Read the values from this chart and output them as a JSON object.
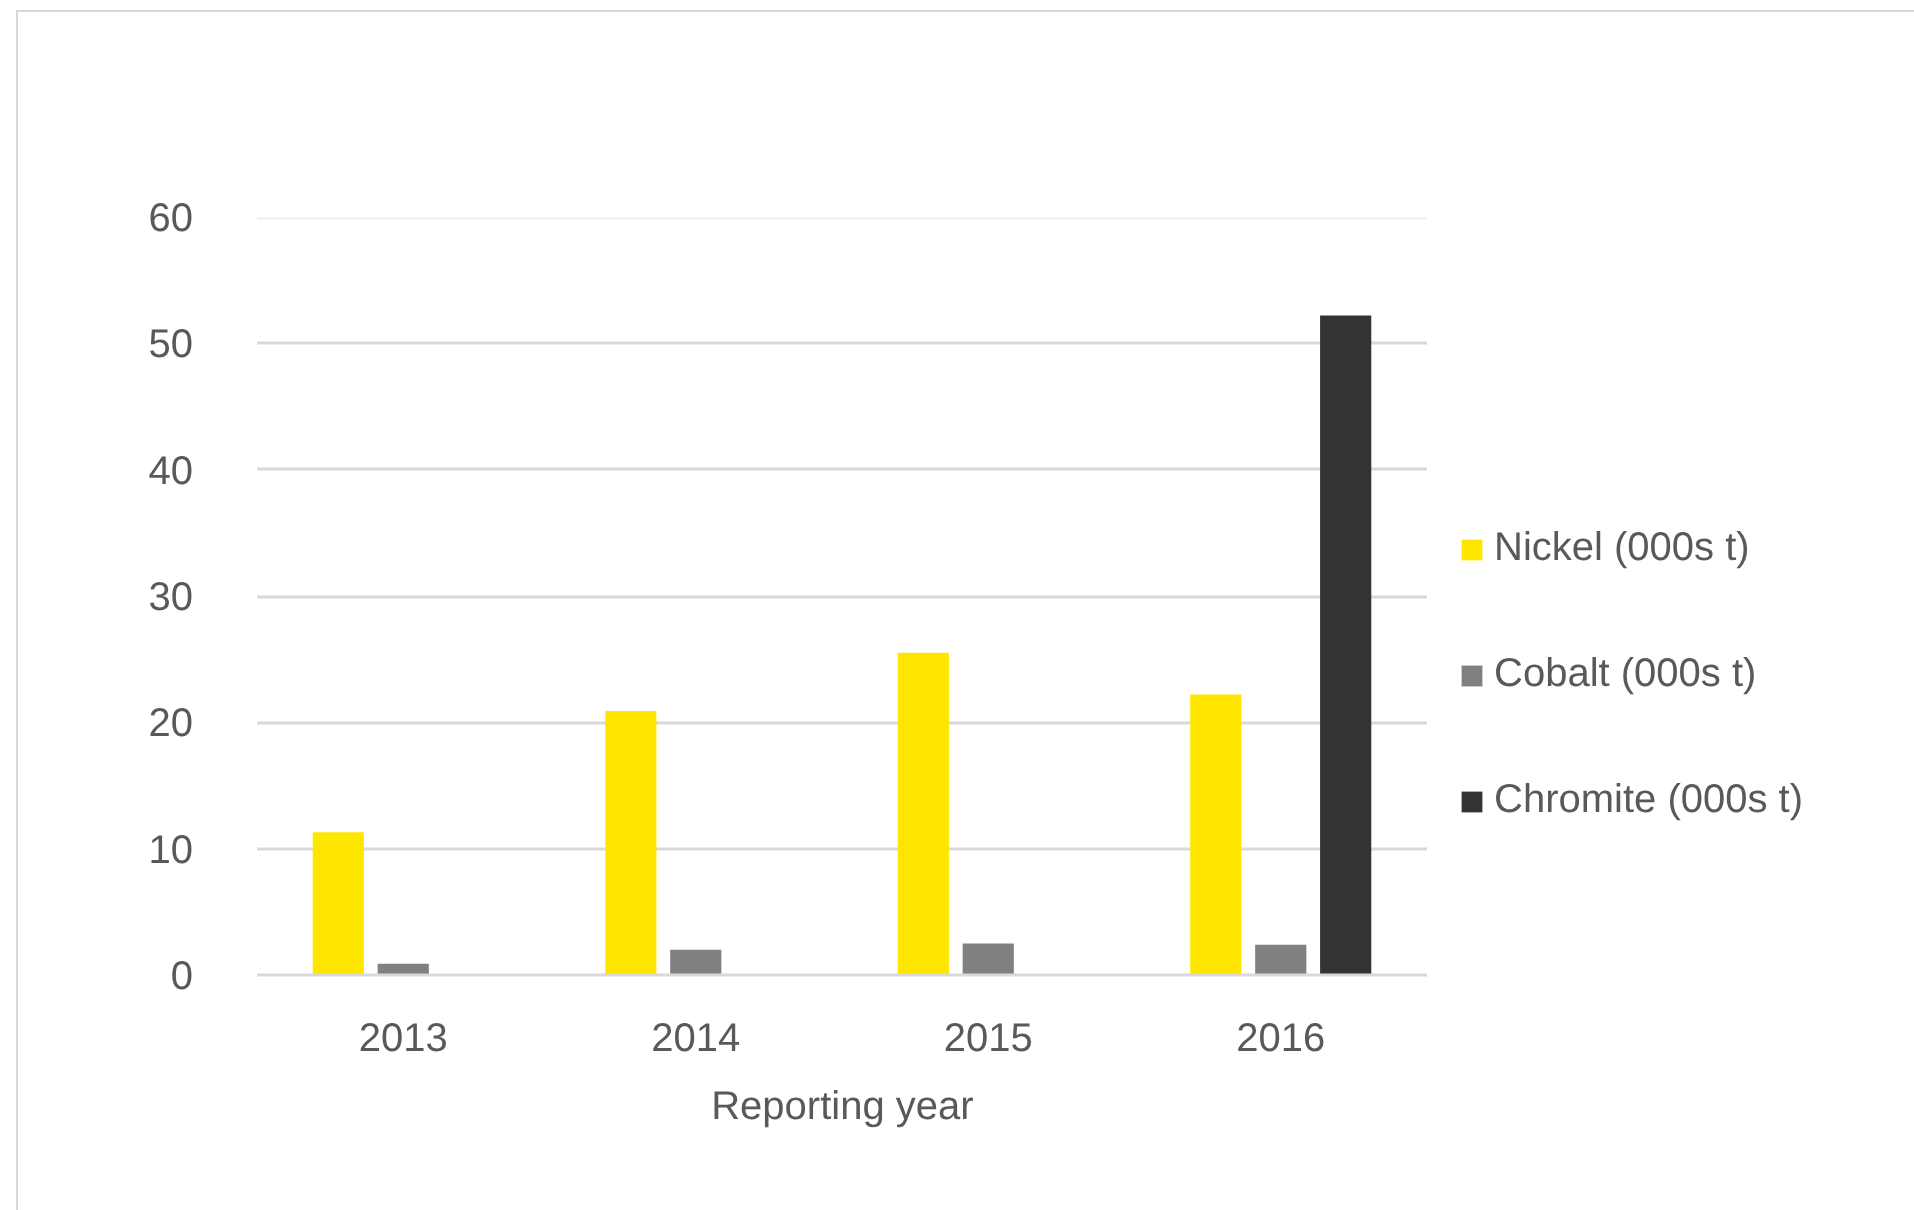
{
  "chart_data": {
    "type": "bar",
    "xlabel": "Reporting year",
    "categories": [
      "2013",
      "2014",
      "2015",
      "2016"
    ],
    "series": [
      {
        "name": "Nickel (000s t)",
        "color": "#ffe600",
        "values": [
          11.3,
          20.9,
          25.5,
          22.2
        ]
      },
      {
        "name": "Cobalt (000s t)",
        "color": "#808080",
        "values": [
          0.9,
          2.0,
          2.5,
          2.4
        ]
      },
      {
        "name": "Chromite (000s t)",
        "color": "#333333",
        "values": [
          null,
          null,
          null,
          52.2
        ]
      }
    ],
    "ylim": [
      0,
      60
    ],
    "yticks": [
      0,
      10,
      20,
      30,
      40,
      50,
      60
    ],
    "grid": "y",
    "legend": "right"
  }
}
